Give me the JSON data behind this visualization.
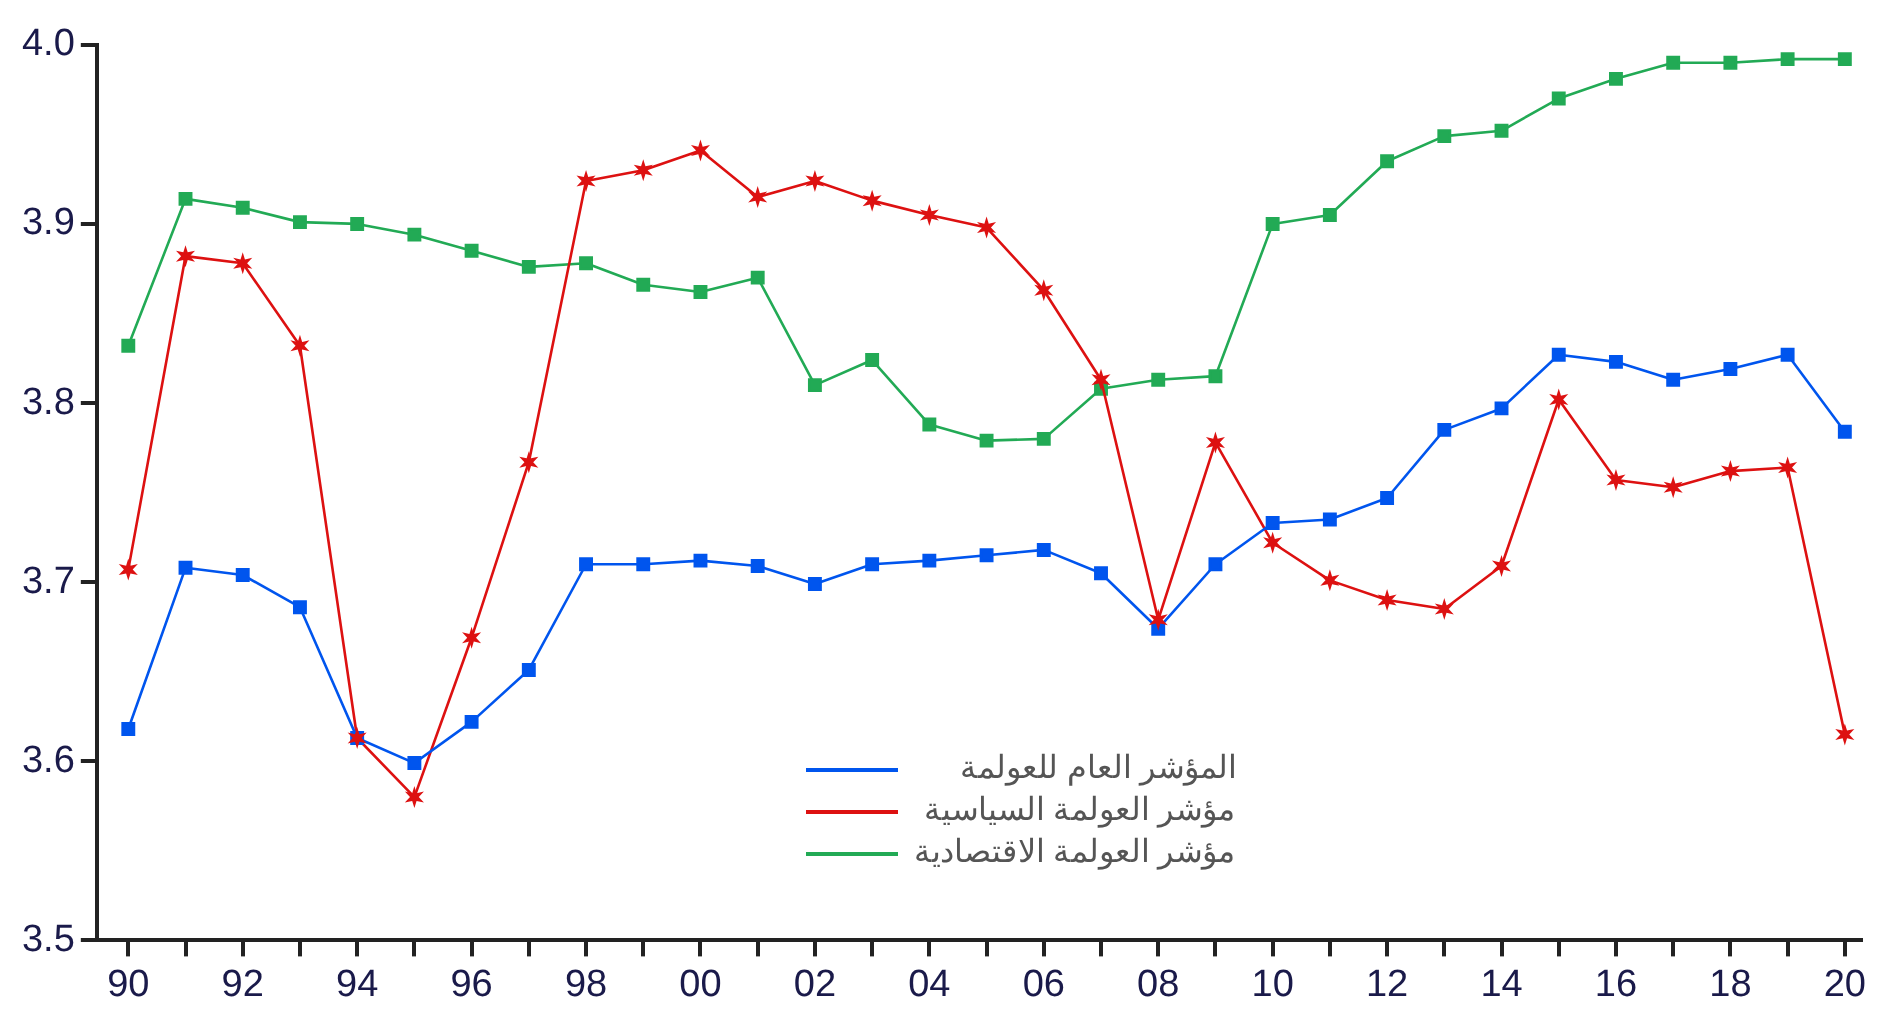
{
  "chart_data": {
    "type": "line",
    "x": [
      1990,
      1991,
      1992,
      1993,
      1994,
      1995,
      1996,
      1997,
      1998,
      1999,
      2000,
      2001,
      2002,
      2003,
      2004,
      2005,
      2006,
      2007,
      2008,
      2009,
      2010,
      2011,
      2012,
      2013,
      2014,
      2015,
      2016,
      2017,
      2018,
      2019,
      2020
    ],
    "series": [
      {
        "name": "المؤشر العام للعولمة",
        "color": "#0055ee",
        "marker": "square",
        "values": [
          3.618,
          3.708,
          3.704,
          3.686,
          3.613,
          3.599,
          3.622,
          3.651,
          3.71,
          3.71,
          3.712,
          3.709,
          3.699,
          3.71,
          3.712,
          3.715,
          3.718,
          3.705,
          3.674,
          3.71,
          3.733,
          3.735,
          3.747,
          3.785,
          3.797,
          3.827,
          3.823,
          3.813,
          3.819,
          3.827,
          3.784
        ]
      },
      {
        "name": "مؤشر العولمة السياسية",
        "color": "#dd1111",
        "marker": "cross",
        "values": [
          3.707,
          3.882,
          3.878,
          3.832,
          3.613,
          3.58,
          3.669,
          3.767,
          3.924,
          3.93,
          3.941,
          3.915,
          3.924,
          3.913,
          3.905,
          3.898,
          3.863,
          3.813,
          3.679,
          3.778,
          3.722,
          3.701,
          3.69,
          3.685,
          3.709,
          3.802,
          3.757,
          3.753,
          3.762,
          3.764,
          3.615
        ]
      },
      {
        "name": "مؤشر العولمة الاقتصادية",
        "color": "#22aa55",
        "marker": "square",
        "values": [
          3.832,
          3.914,
          3.909,
          3.901,
          3.9,
          3.894,
          3.885,
          3.876,
          3.878,
          3.866,
          3.862,
          3.87,
          3.81,
          3.824,
          3.788,
          3.779,
          3.78,
          3.808,
          3.813,
          3.815,
          3.9,
          3.905,
          3.935,
          3.949,
          3.952,
          3.97,
          3.981,
          3.99,
          3.99,
          3.992,
          3.992
        ]
      }
    ],
    "xlim": [
      1989.45,
      2020.3
    ],
    "xticks": [
      {
        "value": 1990,
        "label": "90"
      },
      {
        "value": 1991,
        "label": null
      },
      {
        "value": 1992,
        "label": "92"
      },
      {
        "value": 1993,
        "label": null
      },
      {
        "value": 1994,
        "label": "94"
      },
      {
        "value": 1995,
        "label": null
      },
      {
        "value": 1996,
        "label": "96"
      },
      {
        "value": 1997,
        "label": null
      },
      {
        "value": 1998,
        "label": "98"
      },
      {
        "value": 1999,
        "label": null
      },
      {
        "value": 2000,
        "label": "00"
      },
      {
        "value": 2001,
        "label": null
      },
      {
        "value": 2002,
        "label": "02"
      },
      {
        "value": 2003,
        "label": null
      },
      {
        "value": 2004,
        "label": "04"
      },
      {
        "value": 2005,
        "label": null
      },
      {
        "value": 2006,
        "label": "06"
      },
      {
        "value": 2007,
        "label": null
      },
      {
        "value": 2008,
        "label": "08"
      },
      {
        "value": 2009,
        "label": null
      },
      {
        "value": 2010,
        "label": "10"
      },
      {
        "value": 2011,
        "label": null
      },
      {
        "value": 2012,
        "label": "12"
      },
      {
        "value": 2013,
        "label": null
      },
      {
        "value": 2014,
        "label": "14"
      },
      {
        "value": 2015,
        "label": null
      },
      {
        "value": 2016,
        "label": "16"
      },
      {
        "value": 2017,
        "label": null
      },
      {
        "value": 2018,
        "label": "18"
      },
      {
        "value": 2019,
        "label": null
      },
      {
        "value": 2020,
        "label": "20"
      }
    ],
    "ylim": [
      3.5,
      4.0
    ],
    "yticks": [
      {
        "value": 3.5,
        "label": "3.5"
      },
      {
        "value": 3.6,
        "label": "3.6"
      },
      {
        "value": 3.7,
        "label": "3.7"
      },
      {
        "value": 3.8,
        "label": "3.8"
      },
      {
        "value": 3.9,
        "label": "3.9"
      },
      {
        "value": 4.0,
        "label": "4.0"
      }
    ],
    "grid": false,
    "legend": "bottom",
    "line_style": "solid"
  }
}
